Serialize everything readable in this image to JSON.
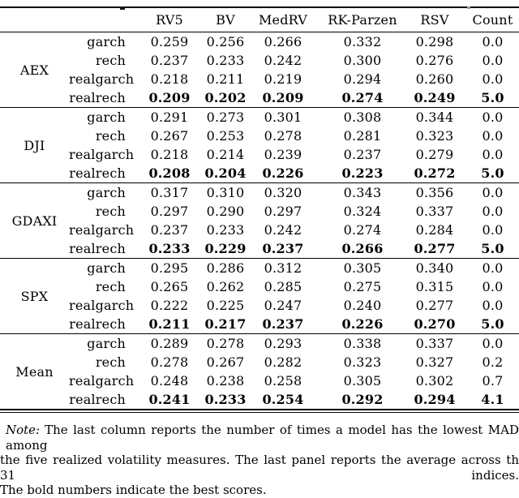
{
  "table": {
    "header": {
      "columns": [
        "RV5",
        "BV",
        "MedRV",
        "RK-Parzen",
        "RSV",
        "Count"
      ]
    },
    "panels": [
      {
        "index": "AEX",
        "rows": [
          {
            "model": "garch",
            "values": [
              "0.259",
              "0.256",
              "0.266",
              "0.332",
              "0.298",
              "0.0"
            ],
            "bold": false
          },
          {
            "model": "rech",
            "values": [
              "0.237",
              "0.233",
              "0.242",
              "0.300",
              "0.276",
              "0.0"
            ],
            "bold": false
          },
          {
            "model": "realgarch",
            "values": [
              "0.218",
              "0.211",
              "0.219",
              "0.294",
              "0.260",
              "0.0"
            ],
            "bold": false
          },
          {
            "model": "realrech",
            "values": [
              "0.209",
              "0.202",
              "0.209",
              "0.274",
              "0.249",
              "5.0"
            ],
            "bold": true
          }
        ]
      },
      {
        "index": "DJI",
        "rows": [
          {
            "model": "garch",
            "values": [
              "0.291",
              "0.273",
              "0.301",
              "0.308",
              "0.344",
              "0.0"
            ],
            "bold": false
          },
          {
            "model": "rech",
            "values": [
              "0.267",
              "0.253",
              "0.278",
              "0.281",
              "0.323",
              "0.0"
            ],
            "bold": false
          },
          {
            "model": "realgarch",
            "values": [
              "0.218",
              "0.214",
              "0.239",
              "0.237",
              "0.279",
              "0.0"
            ],
            "bold": false
          },
          {
            "model": "realrech",
            "values": [
              "0.208",
              "0.204",
              "0.226",
              "0.223",
              "0.272",
              "5.0"
            ],
            "bold": true
          }
        ]
      },
      {
        "index": "GDAXI",
        "rows": [
          {
            "model": "garch",
            "values": [
              "0.317",
              "0.310",
              "0.320",
              "0.343",
              "0.356",
              "0.0"
            ],
            "bold": false
          },
          {
            "model": "rech",
            "values": [
              "0.297",
              "0.290",
              "0.297",
              "0.324",
              "0.337",
              "0.0"
            ],
            "bold": false
          },
          {
            "model": "realgarch",
            "values": [
              "0.237",
              "0.233",
              "0.242",
              "0.274",
              "0.284",
              "0.0"
            ],
            "bold": false
          },
          {
            "model": "realrech",
            "values": [
              "0.233",
              "0.229",
              "0.237",
              "0.266",
              "0.277",
              "5.0"
            ],
            "bold": true
          }
        ]
      },
      {
        "index": "SPX",
        "rows": [
          {
            "model": "garch",
            "values": [
              "0.295",
              "0.286",
              "0.312",
              "0.305",
              "0.340",
              "0.0"
            ],
            "bold": false
          },
          {
            "model": "rech",
            "values": [
              "0.265",
              "0.262",
              "0.285",
              "0.275",
              "0.315",
              "0.0"
            ],
            "bold": false
          },
          {
            "model": "realgarch",
            "values": [
              "0.222",
              "0.225",
              "0.247",
              "0.240",
              "0.277",
              "0.0"
            ],
            "bold": false
          },
          {
            "model": "realrech",
            "values": [
              "0.211",
              "0.217",
              "0.237",
              "0.226",
              "0.270",
              "5.0"
            ],
            "bold": true
          }
        ]
      },
      {
        "index": "Mean",
        "rows": [
          {
            "model": "garch",
            "values": [
              "0.289",
              "0.278",
              "0.293",
              "0.338",
              "0.337",
              "0.0"
            ],
            "bold": false
          },
          {
            "model": "rech",
            "values": [
              "0.278",
              "0.267",
              "0.282",
              "0.323",
              "0.327",
              "0.2"
            ],
            "bold": false
          },
          {
            "model": "realgarch",
            "values": [
              "0.248",
              "0.238",
              "0.258",
              "0.305",
              "0.302",
              "0.7"
            ],
            "bold": false
          },
          {
            "model": "realrech",
            "values": [
              "0.241",
              "0.233",
              "0.254",
              "0.292",
              "0.294",
              "4.1"
            ],
            "bold": true
          }
        ]
      }
    ]
  },
  "note": {
    "label": "Note:",
    "line1": "The last column reports the number of times a model has the lowest MAD among",
    "line2": "the five realized volatility measures. The last panel reports the average across th 31 indices.",
    "line3": "The bold numbers indicate the best scores."
  },
  "colors": {
    "text": "#000000",
    "rule": "#000000",
    "background": "#ffffff"
  }
}
